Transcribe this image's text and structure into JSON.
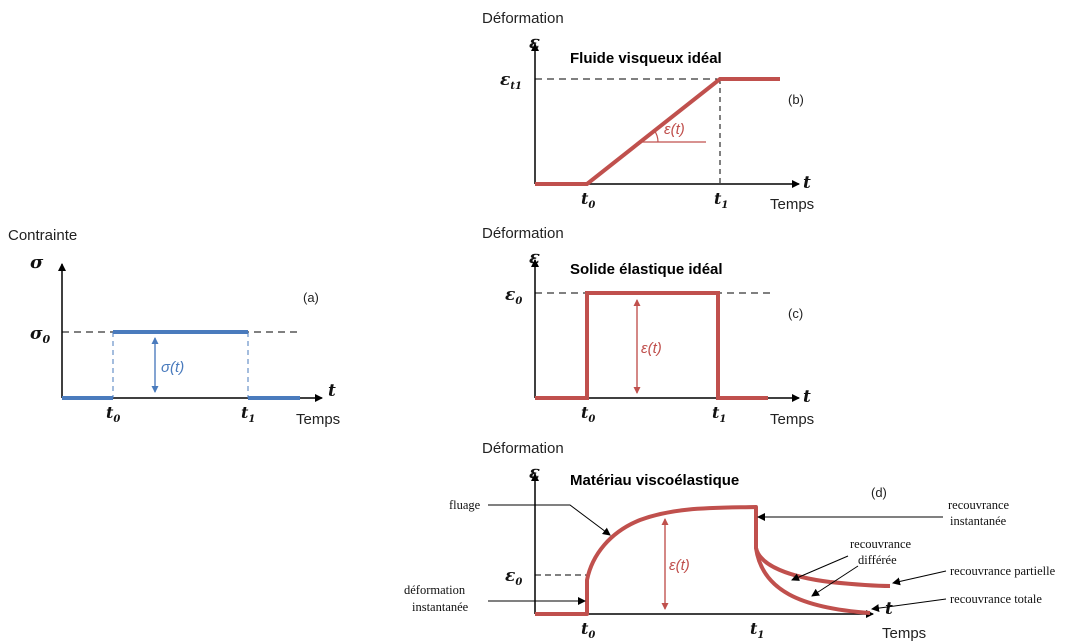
{
  "colors": {
    "red": "#c0504d",
    "blue": "#4a7bbd",
    "axis": "#000000"
  },
  "panel_a": {
    "ylabel": "Contrainte",
    "axis_symbol": "σ",
    "level_symbol": "σ",
    "level_sub": "0",
    "curve_label": "σ(t)",
    "tag": "(a)",
    "t_axis": "t",
    "t0": "t",
    "t0_sub": "0",
    "t1": "t",
    "t1_sub": "1",
    "xlabel": "Temps"
  },
  "panel_b": {
    "ylabel": "Déformation",
    "axis_symbol": "ε",
    "title": "Fluide visqueux idéal",
    "level_symbol": "ε",
    "level_sub": "t1",
    "curve_label": "ε(t)",
    "tag": "(b)",
    "t_axis": "t",
    "t0": "t",
    "t0_sub": "0",
    "t1": "t",
    "t1_sub": "1",
    "xlabel": "Temps"
  },
  "panel_c": {
    "ylabel": "Déformation",
    "axis_symbol": "ε",
    "title": "Solide élastique idéal",
    "level_symbol": "ε",
    "level_sub": "0",
    "curve_label": "ε(t)",
    "tag": "(c)",
    "t_axis": "t",
    "t0": "t",
    "t0_sub": "0",
    "t1": "t",
    "t1_sub": "1",
    "xlabel": "Temps"
  },
  "panel_d": {
    "ylabel": "Déformation",
    "axis_symbol": "ε",
    "title": "Matériau viscoélastique",
    "level_symbol": "ε",
    "level_sub": "0",
    "curve_label": "ε(t)",
    "tag": "(d)",
    "t_axis": "t",
    "t0": "t",
    "t0_sub": "0",
    "t1": "t",
    "t1_sub": "1",
    "xlabel": "Temps",
    "annotations": {
      "fluage": "fluage",
      "deformation_1": "déformation",
      "deformation_2": "instantanée",
      "rec_inst_1": "recouvrance",
      "rec_inst_2": "instantanée",
      "rec_diff_1": "recouvrance",
      "rec_diff_2": "différée",
      "rec_partielle": "recouvrance partielle",
      "rec_totale": "recouvrance totale"
    }
  }
}
